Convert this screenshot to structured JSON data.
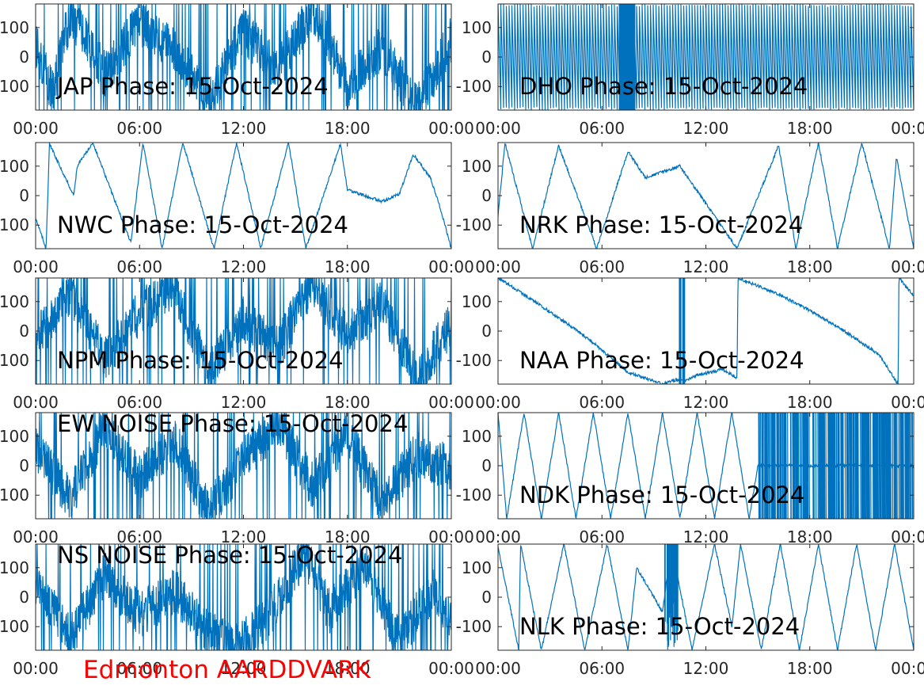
{
  "station_label": "Edmonton AARDDVARK",
  "colors": {
    "trace": "#0072BD",
    "axes": "#262626",
    "station": "#FF0000"
  },
  "chart_data": [
    {
      "type": "line",
      "id": "jap",
      "title": "JAP Phase: 15-Oct-2024",
      "style": "noisy-wrap",
      "xticks": [
        "00:00",
        "06:00",
        "12:00",
        "18:00",
        "00:00"
      ],
      "yticks": [
        "100",
        "0",
        "100"
      ],
      "xlim_hours": [
        0,
        24
      ],
      "ylim": [
        -180,
        180
      ],
      "series": [
        {
          "x": [
            0,
            1,
            2,
            4,
            6,
            8,
            10,
            12,
            14,
            16,
            18,
            20,
            22,
            24
          ],
          "y": [
            40,
            -120,
            150,
            -60,
            120,
            20,
            -150,
            90,
            -40,
            160,
            -100,
            30,
            -170,
            60
          ]
        }
      ]
    },
    {
      "type": "line",
      "id": "dho",
      "title": "DHO Phase: 15-Oct-2024",
      "style": "dense-ramp",
      "xticks": [
        "00:00",
        "06:00",
        "12:00",
        "18:00",
        "00:00"
      ],
      "yticks": [
        "100",
        "0",
        "-100"
      ],
      "xlim_hours": [
        0,
        24
      ],
      "ylim": [
        -180,
        180
      ],
      "series": [
        {
          "x": [
            0,
            7.4,
            7.6,
            24
          ],
          "y": [
            100,
            -100,
            100,
            -100
          ]
        }
      ]
    },
    {
      "type": "line",
      "id": "nwc",
      "title": "NWC Phase: 15-Oct-2024",
      "style": "smooth-wrap",
      "xticks": [
        "00:00",
        "06:00",
        "12:00",
        "18:00",
        "00:00"
      ],
      "yticks": [
        "100",
        "0",
        "100"
      ],
      "xlim_hours": [
        0,
        24
      ],
      "ylim": [
        -180,
        180
      ],
      "series": [
        {
          "x": [
            0,
            0.6,
            0.8,
            2.2,
            2.4,
            3.3,
            5.5,
            6.2,
            7.3,
            8.5,
            10.3,
            11.6,
            13.0,
            14.6,
            15.6,
            17.6,
            18.0,
            20.0,
            21.0,
            21.8,
            22.8,
            23.3,
            24.0
          ],
          "y": [
            -75,
            -180,
            175,
            0,
            100,
            180,
            -160,
            180,
            -180,
            180,
            -180,
            180,
            -180,
            180,
            -180,
            175,
            20,
            -20,
            5,
            140,
            60,
            -30,
            -180
          ]
        }
      ]
    },
    {
      "type": "line",
      "id": "nrk",
      "title": "NRK Phase: 15-Oct-2024",
      "style": "smooth-wrap",
      "xticks": [
        "00:00",
        "06:00",
        "12:00",
        "18:00",
        "00:00"
      ],
      "yticks": [
        "100",
        "0",
        "-100"
      ],
      "xlim_hours": [
        0,
        24
      ],
      "ylim": [
        -180,
        180
      ],
      "series": [
        {
          "x": [
            0,
            0.4,
            2.0,
            3.5,
            5.7,
            7.5,
            8.5,
            9.5,
            10.5,
            13.8,
            16.2,
            17.2,
            18.5,
            19.6,
            21.0,
            22.6,
            23.0,
            24.0
          ],
          "y": [
            -70,
            180,
            -180,
            170,
            -180,
            150,
            60,
            80,
            100,
            -180,
            170,
            -180,
            180,
            -180,
            180,
            -180,
            130,
            -180
          ]
        }
      ]
    },
    {
      "type": "line",
      "id": "npm",
      "title": "NPM Phase: 15-Oct-2024",
      "style": "noisy-wrap",
      "xticks": [
        "00:00",
        "06:00",
        "12:00",
        "18:00",
        "00:00"
      ],
      "yticks": [
        "100",
        "0",
        "100"
      ],
      "xlim_hours": [
        0,
        24
      ],
      "ylim": [
        -180,
        180
      ],
      "series": [
        {
          "x": [
            0,
            2,
            4,
            6,
            8,
            10,
            12,
            14,
            16,
            18,
            20,
            22,
            24
          ],
          "y": [
            -30,
            120,
            -90,
            60,
            150,
            -140,
            40,
            -60,
            170,
            -20,
            100,
            -170,
            30
          ]
        }
      ]
    },
    {
      "type": "line",
      "id": "naa",
      "title": "NAA Phase: 15-Oct-2024",
      "style": "smooth-wrap",
      "xticks": [
        "00:00",
        "06:00",
        "12:00",
        "18:00",
        "00:00"
      ],
      "yticks": [
        "100",
        "0",
        "-100"
      ],
      "xlim_hours": [
        0,
        24
      ],
      "ylim": [
        -180,
        180
      ],
      "series": [
        {
          "x": [
            0,
            2,
            4,
            5.5,
            7.5,
            9.5,
            10.3,
            10.8,
            11.5,
            13.0,
            13.8,
            13.85,
            16,
            18,
            20,
            22,
            23.1,
            23.15,
            24
          ],
          "y": [
            180,
            105,
            25,
            -40,
            -140,
            -180,
            -165,
            -170,
            -150,
            -130,
            -160,
            180,
            130,
            70,
            0,
            -80,
            -180,
            180,
            120
          ]
        }
      ]
    },
    {
      "type": "line",
      "id": "ew-noise",
      "title": "EW NOISE Phase: 15-Oct-2024",
      "style": "noisy-wrap",
      "xticks": [
        "00:00",
        "06:00",
        "12:00",
        "18:00",
        "00:00"
      ],
      "yticks": [
        "100",
        "0",
        "100"
      ],
      "xlim_hours": [
        0,
        24
      ],
      "ylim": [
        -180,
        180
      ],
      "series": [
        {
          "x": [
            0,
            2,
            4,
            6,
            8,
            10,
            12,
            14,
            16,
            18,
            20,
            22,
            24
          ],
          "y": [
            60,
            -110,
            130,
            -40,
            90,
            -160,
            20,
            150,
            -70,
            110,
            -130,
            40,
            -10
          ]
        }
      ]
    },
    {
      "type": "line",
      "id": "ndk",
      "title": "NDK Phase: 15-Oct-2024",
      "style": "smooth-wrap",
      "xticks": [
        "00:00",
        "06:00",
        "12:00",
        "18:00",
        "00:00"
      ],
      "yticks": [
        "100",
        "0",
        "-100"
      ],
      "xlim_hours": [
        0,
        24
      ],
      "ylim": [
        -180,
        180
      ],
      "series": [
        {
          "x": [
            0,
            0.5,
            1.5,
            2.5,
            3.5,
            4.5,
            5.5,
            6.5,
            7.5,
            8.5,
            9.5,
            10.5,
            11.5,
            12.5,
            13.5,
            14.5,
            15.0,
            24.0
          ],
          "y": [
            180,
            -180,
            180,
            -180,
            180,
            -180,
            180,
            -180,
            180,
            -180,
            180,
            -180,
            180,
            -180,
            180,
            -180,
            0,
            0
          ]
        }
      ]
    },
    {
      "type": "line",
      "id": "ns-noise",
      "title": "NS NOISE Phase: 15-Oct-2024",
      "style": "noisy-wrap",
      "xticks": [
        "00:00",
        "06:00",
        "12:00",
        "18:00",
        "00:00"
      ],
      "yticks": [
        "100",
        "0",
        "100"
      ],
      "xlim_hours": [
        0,
        24
      ],
      "ylim": [
        -180,
        180
      ],
      "series": [
        {
          "x": [
            0,
            2,
            4,
            6,
            8,
            10,
            11.5,
            13,
            14.5,
            15.5,
            17,
            19,
            21,
            23,
            24
          ],
          "y": [
            50,
            -140,
            80,
            -60,
            20,
            -120,
            -170,
            -100,
            40,
            150,
            -50,
            120,
            -150,
            30,
            -80
          ]
        }
      ]
    },
    {
      "type": "line",
      "id": "nlk",
      "title": "NLK Phase: 15-Oct-2024",
      "style": "smooth-wrap",
      "xticks": [
        "00:00",
        "06:00",
        "12:00",
        "18:00",
        "00:00"
      ],
      "yticks": [
        "100",
        "0",
        "-100"
      ],
      "xlim_hours": [
        0,
        24
      ],
      "ylim": [
        -180,
        180
      ],
      "series": [
        {
          "x": [
            0,
            1.2,
            1.3,
            2.5,
            3.8,
            5.0,
            6.3,
            7.5,
            8.0,
            9.5,
            10.0,
            11.2,
            12.5,
            13.5,
            14.0,
            15.2,
            16.3,
            17.4,
            18.5,
            19.6,
            20.7,
            21.8,
            22.9,
            24.0
          ],
          "y": [
            170,
            -180,
            180,
            -180,
            180,
            -180,
            180,
            -180,
            100,
            -50,
            180,
            -180,
            180,
            -100,
            180,
            -180,
            180,
            -180,
            180,
            -180,
            180,
            -180,
            180,
            -180
          ]
        }
      ]
    }
  ]
}
